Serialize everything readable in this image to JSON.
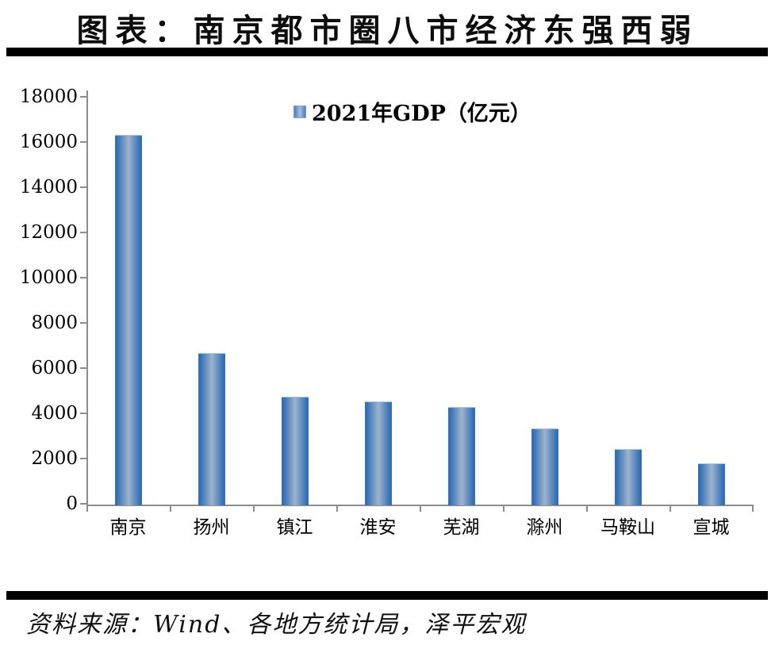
{
  "page": {
    "title": "图表：南京都市圈八市经济东强西弱",
    "source": "资料来源：Wind、各地方统计局，泽平宏观"
  },
  "chart_data": {
    "type": "bar",
    "title": "图表：南京都市圈八市经济东强西弱",
    "legend": "2021年GDP（亿元）",
    "legend_position": "top-center",
    "categories": [
      "南京",
      "扬州",
      "镇江",
      "淮安",
      "芜湖",
      "滁州",
      "马鞍山",
      "宣城"
    ],
    "values": [
      16355,
      6696,
      4763,
      4550,
      4303,
      3362,
      2439,
      1833
    ],
    "xlabel": "",
    "ylabel": "",
    "ylim": [
      0,
      18000
    ],
    "ytick_interval": 2000,
    "yticks": [
      0,
      2000,
      4000,
      6000,
      8000,
      10000,
      12000,
      14000,
      16000,
      18000
    ],
    "grid": false,
    "colors": {
      "bar_edge": "#2e6cb5",
      "bar_center": "#9db3cc",
      "axis": "#8d8d8d",
      "text": "#000000",
      "divider": "#010101"
    }
  }
}
